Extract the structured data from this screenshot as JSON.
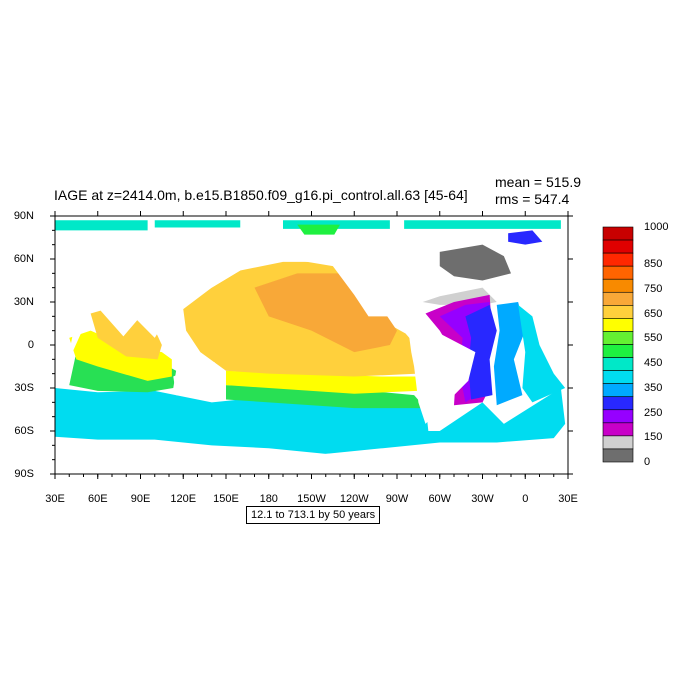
{
  "title": "IAGE at z=2414.0m, b.e15.B1850.f09_g16.pi_control.all.63 [45-64]",
  "stats": {
    "mean": "mean = 515.9",
    "rms": "rms = 547.4"
  },
  "range_note": "12.1 to 713.1 by 50 years",
  "map": {
    "projection": "cylindrical-equidistant",
    "lon_range": [
      30,
      390
    ],
    "lat_range": [
      -90,
      90
    ],
    "lat_ticks": [
      {
        "lat": 90,
        "label": "90N"
      },
      {
        "lat": 60,
        "label": "60N"
      },
      {
        "lat": 30,
        "label": "30N"
      },
      {
        "lat": 0,
        "label": "0"
      },
      {
        "lat": -30,
        "label": "30S"
      },
      {
        "lat": -60,
        "label": "60S"
      },
      {
        "lat": -90,
        "label": "90S"
      }
    ],
    "lon_ticks": [
      {
        "lon": 30,
        "label": "30E"
      },
      {
        "lon": 60,
        "label": "60E"
      },
      {
        "lon": 90,
        "label": "90E"
      },
      {
        "lon": 120,
        "label": "120E"
      },
      {
        "lon": 150,
        "label": "150E"
      },
      {
        "lon": 180,
        "label": "180"
      },
      {
        "lon": 210,
        "label": "150W"
      },
      {
        "lon": 240,
        "label": "120W"
      },
      {
        "lon": 270,
        "label": "90W"
      },
      {
        "lon": 300,
        "label": "60W"
      },
      {
        "lon": 330,
        "label": "30W"
      },
      {
        "lon": 360,
        "label": "0"
      },
      {
        "lon": 390,
        "label": "30E"
      }
    ],
    "fill_regions": [
      {
        "name": "arctic-cap",
        "color": "#00e8c8",
        "poly": [
          [
            30,
            87
          ],
          [
            95,
            87
          ],
          [
            95,
            80
          ],
          [
            30,
            80
          ]
        ]
      },
      {
        "name": "arctic-cap-2",
        "color": "#00e8c8",
        "poly": [
          [
            100,
            87
          ],
          [
            160,
            87
          ],
          [
            160,
            82
          ],
          [
            100,
            82
          ]
        ]
      },
      {
        "name": "arctic-cap-3",
        "color": "#00e8c8",
        "poly": [
          [
            190,
            87
          ],
          [
            265,
            87
          ],
          [
            265,
            81
          ],
          [
            190,
            81
          ]
        ]
      },
      {
        "name": "arctic-cap-4",
        "color": "#00e8c8",
        "poly": [
          [
            275,
            87
          ],
          [
            385,
            87
          ],
          [
            385,
            81
          ],
          [
            275,
            81
          ]
        ]
      },
      {
        "name": "arctic-green",
        "color": "#1ef040",
        "poly": [
          [
            200,
            84
          ],
          [
            230,
            84
          ],
          [
            226,
            77
          ],
          [
            205,
            77
          ]
        ]
      },
      {
        "name": "southern-ocean",
        "color": "#00dcf0",
        "poly": [
          [
            30,
            -30
          ],
          [
            60,
            -33
          ],
          [
            100,
            -32
          ],
          [
            140,
            -40
          ],
          [
            180,
            -36
          ],
          [
            240,
            -40
          ],
          [
            290,
            -42
          ],
          [
            292,
            -60
          ],
          [
            300,
            -60
          ],
          [
            330,
            -40
          ],
          [
            345,
            -55
          ],
          [
            385,
            -30
          ],
          [
            388,
            -55
          ],
          [
            380,
            -65
          ],
          [
            340,
            -68
          ],
          [
            300,
            -68
          ],
          [
            260,
            -72
          ],
          [
            220,
            -76
          ],
          [
            180,
            -72
          ],
          [
            140,
            -70
          ],
          [
            100,
            -66
          ],
          [
            60,
            -66
          ],
          [
            30,
            -64
          ]
        ]
      },
      {
        "name": "indian-ocean",
        "color": "#28e054",
        "poly": [
          [
            45,
            -5
          ],
          [
            60,
            0
          ],
          [
            75,
            -5
          ],
          [
            100,
            -10
          ],
          [
            115,
            -18
          ],
          [
            113,
            -30
          ],
          [
            95,
            -33
          ],
          [
            60,
            -32
          ],
          [
            40,
            -28
          ]
        ]
      },
      {
        "name": "indian-yellow",
        "color": "#ffff00",
        "poly": [
          [
            40,
            5
          ],
          [
            55,
            10
          ],
          [
            78,
            0
          ],
          [
            105,
            -5
          ],
          [
            112,
            -10
          ],
          [
            112,
            -22
          ],
          [
            95,
            -25
          ],
          [
            60,
            -15
          ],
          [
            45,
            -10
          ]
        ]
      },
      {
        "name": "indian-north",
        "color": "#ffd03c",
        "poly": [
          [
            55,
            22
          ],
          [
            62,
            24
          ],
          [
            78,
            6
          ],
          [
            90,
            20
          ],
          [
            98,
            15
          ],
          [
            105,
            0
          ],
          [
            102,
            -10
          ],
          [
            80,
            -8
          ],
          [
            60,
            5
          ]
        ]
      },
      {
        "name": "south-pac-green",
        "color": "#28e054",
        "poly": [
          [
            150,
            -28
          ],
          [
            200,
            -30
          ],
          [
            250,
            -32
          ],
          [
            282,
            -35
          ],
          [
            290,
            -44
          ],
          [
            240,
            -44
          ],
          [
            180,
            -40
          ],
          [
            150,
            -38
          ]
        ]
      },
      {
        "name": "south-pac-yellow",
        "color": "#ffff00",
        "poly": [
          [
            150,
            -18
          ],
          [
            200,
            -20
          ],
          [
            260,
            -22
          ],
          [
            285,
            -22
          ],
          [
            284,
            -32
          ],
          [
            240,
            -34
          ],
          [
            180,
            -30
          ],
          [
            150,
            -28
          ]
        ]
      },
      {
        "name": "pacific-main",
        "color": "#ffd03c",
        "poly": [
          [
            120,
            25
          ],
          [
            140,
            40
          ],
          [
            160,
            52
          ],
          [
            190,
            58
          ],
          [
            220,
            58
          ],
          [
            240,
            54
          ],
          [
            250,
            40
          ],
          [
            256,
            30
          ],
          [
            258,
            18
          ],
          [
            276,
            8
          ],
          [
            283,
            0
          ],
          [
            285,
            -20
          ],
          [
            240,
            -22
          ],
          [
            180,
            -20
          ],
          [
            150,
            -18
          ],
          [
            132,
            -5
          ],
          [
            122,
            10
          ]
        ]
      },
      {
        "name": "pacific-core",
        "color": "#f8a838",
        "poly": [
          [
            170,
            40
          ],
          [
            200,
            50
          ],
          [
            235,
            50
          ],
          [
            255,
            32
          ],
          [
            270,
            10
          ],
          [
            265,
            0
          ],
          [
            240,
            -5
          ],
          [
            210,
            10
          ],
          [
            180,
            20
          ]
        ]
      },
      {
        "name": "atlantic-gray",
        "color": "#d0d0d0",
        "poly": [
          [
            288,
            30
          ],
          [
            300,
            34
          ],
          [
            330,
            40
          ],
          [
            340,
            30
          ],
          [
            330,
            28
          ],
          [
            300,
            28
          ]
        ]
      },
      {
        "name": "atlantic-magenta",
        "color": "#c800c8",
        "poly": [
          [
            290,
            22
          ],
          [
            310,
            30
          ],
          [
            335,
            35
          ],
          [
            336,
            20
          ],
          [
            330,
            -10
          ],
          [
            335,
            -30
          ],
          [
            330,
            -40
          ],
          [
            310,
            -42
          ],
          [
            312,
            -10
          ],
          [
            300,
            10
          ]
        ]
      },
      {
        "name": "atlantic-purple",
        "color": "#9600ff",
        "poly": [
          [
            300,
            20
          ],
          [
            318,
            28
          ],
          [
            335,
            30
          ],
          [
            332,
            0
          ],
          [
            330,
            -32
          ],
          [
            318,
            -40
          ],
          [
            314,
            -20
          ],
          [
            316,
            5
          ]
        ]
      },
      {
        "name": "atlantic-blue",
        "color": "#2828ff",
        "poly": [
          [
            318,
            20
          ],
          [
            335,
            28
          ],
          [
            340,
            10
          ],
          [
            335,
            -10
          ],
          [
            337,
            -35
          ],
          [
            322,
            -38
          ],
          [
            320,
            -15
          ],
          [
            322,
            5
          ]
        ]
      },
      {
        "name": "atlantic-cyan",
        "color": "#00aaff",
        "poly": [
          [
            340,
            28
          ],
          [
            355,
            30
          ],
          [
            360,
            10
          ],
          [
            352,
            -10
          ],
          [
            358,
            -35
          ],
          [
            340,
            -42
          ],
          [
            338,
            -15
          ],
          [
            342,
            10
          ]
        ]
      },
      {
        "name": "atlantic-east",
        "color": "#00dcf0",
        "poly": [
          [
            355,
            28
          ],
          [
            365,
            20
          ],
          [
            370,
            0
          ],
          [
            380,
            -20
          ],
          [
            388,
            -30
          ],
          [
            365,
            -40
          ],
          [
            358,
            -30
          ],
          [
            360,
            -5
          ]
        ]
      },
      {
        "name": "greenland-dark",
        "color": "#6e6e6e",
        "poly": [
          [
            300,
            65
          ],
          [
            330,
            70
          ],
          [
            345,
            62
          ],
          [
            350,
            50
          ],
          [
            330,
            45
          ],
          [
            310,
            48
          ],
          [
            300,
            55
          ]
        ]
      },
      {
        "name": "nordic-blue",
        "color": "#2828ff",
        "poly": [
          [
            348,
            78
          ],
          [
            365,
            80
          ],
          [
            372,
            72
          ],
          [
            360,
            70
          ],
          [
            348,
            72
          ]
        ]
      }
    ],
    "land": [
      {
        "name": "africa",
        "poly": [
          [
            30,
            -30
          ],
          [
            40,
            -5
          ],
          [
            43,
            10
          ],
          [
            30,
            20
          ],
          [
            30,
            35
          ],
          [
            42,
            35
          ],
          [
            50,
            12
          ],
          [
            40,
            -10
          ],
          [
            36,
            -30
          ]
        ]
      },
      {
        "name": "asia",
        "poly": [
          [
            60,
            60
          ],
          [
            100,
            70
          ],
          [
            140,
            70
          ],
          [
            175,
            66
          ],
          [
            160,
            52
          ],
          [
            140,
            40
          ],
          [
            122,
            30
          ],
          [
            108,
            18
          ],
          [
            100,
            5
          ],
          [
            80,
            25
          ],
          [
            60,
            25
          ]
        ]
      },
      {
        "name": "australia",
        "poly": [
          [
            113,
            -22
          ],
          [
            122,
            -18
          ],
          [
            130,
            -12
          ],
          [
            142,
            -12
          ],
          [
            150,
            -25
          ],
          [
            150,
            -38
          ],
          [
            140,
            -38
          ],
          [
            115,
            -35
          ]
        ]
      },
      {
        "name": "north-america",
        "poly": [
          [
            190,
            70
          ],
          [
            230,
            70
          ],
          [
            260,
            68
          ],
          [
            290,
            62
          ],
          [
            305,
            50
          ],
          [
            280,
            30
          ],
          [
            265,
            20
          ],
          [
            250,
            20
          ],
          [
            240,
            35
          ],
          [
            225,
            55
          ],
          [
            195,
            60
          ]
        ]
      },
      {
        "name": "south-america",
        "poly": [
          [
            278,
            10
          ],
          [
            300,
            8
          ],
          [
            325,
            -5
          ],
          [
            320,
            -25
          ],
          [
            300,
            -45
          ],
          [
            290,
            -55
          ],
          [
            285,
            -40
          ],
          [
            282,
            -15
          ],
          [
            280,
            -5
          ]
        ]
      },
      {
        "name": "europe",
        "poly": [
          [
            350,
            40
          ],
          [
            352,
            60
          ],
          [
            370,
            70
          ],
          [
            390,
            70
          ],
          [
            390,
            40
          ],
          [
            370,
            38
          ]
        ]
      },
      {
        "name": "antarctica",
        "poly": [
          [
            30,
            -70
          ],
          [
            100,
            -68
          ],
          [
            180,
            -78
          ],
          [
            260,
            -74
          ],
          [
            300,
            -70
          ],
          [
            330,
            -74
          ],
          [
            390,
            -70
          ],
          [
            390,
            -90
          ],
          [
            30,
            -90
          ]
        ]
      }
    ]
  },
  "colorbar": {
    "labels": [
      {
        "level": 14,
        "text": "1000"
      },
      {
        "level": 11,
        "text": "850"
      },
      {
        "level": 9,
        "text": "750"
      },
      {
        "level": 7,
        "text": "650"
      },
      {
        "level": 5,
        "text": "550"
      },
      {
        "level": 3,
        "text": "450"
      },
      {
        "level": 1,
        "text": "350"
      },
      {
        "level": -1,
        "text": "250"
      },
      {
        "level": -3,
        "text": "150"
      },
      {
        "level": -5,
        "text": "0"
      }
    ],
    "colors": [
      "#c80000",
      "#e00000",
      "#ff2800",
      "#ff6400",
      "#f88a00",
      "#f8a838",
      "#ffd03c",
      "#ffff00",
      "#64f032",
      "#1ef040",
      "#00e8c8",
      "#00dcf0",
      "#00aaff",
      "#2828ff",
      "#9600ff",
      "#c800c8",
      "#d0d0d0",
      "#6e6e6e"
    ]
  }
}
